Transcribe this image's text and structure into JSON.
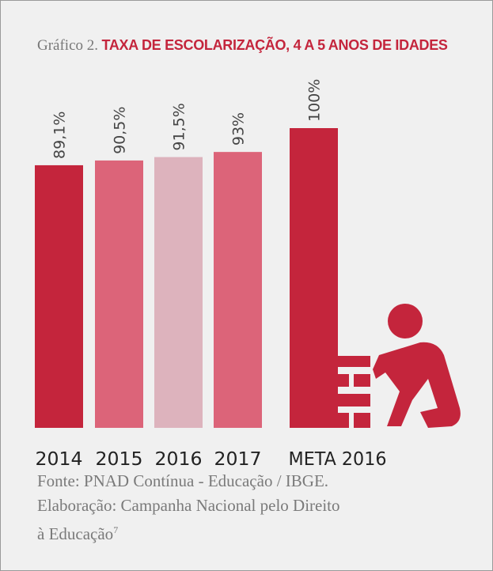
{
  "chart_data": {
    "type": "bar",
    "title_prefix": "Gráfico 2.",
    "title": "TAXA DE ESCOLARIZAÇÃO, 4 A 5 ANOS DE IDADES",
    "categories": [
      "2014",
      "2015",
      "2016",
      "2017",
      "META 2016"
    ],
    "values": [
      89.1,
      90.5,
      91.5,
      93,
      100
    ],
    "value_labels": [
      "89,1%",
      "90,5%",
      "91,5%",
      "93%",
      "100%"
    ],
    "colors": [
      "#c4253c",
      "#dc6479",
      "#ddb3bd",
      "#dc6479",
      "#c4253c"
    ],
    "ylim": [
      12,
      100
    ],
    "source": [
      "Fonte: PNAD Contínua - Educação / IBGE.",
      "Elaboração: Campanha Nacional pelo Direito",
      "à Educação"
    ],
    "footnote": "7"
  }
}
